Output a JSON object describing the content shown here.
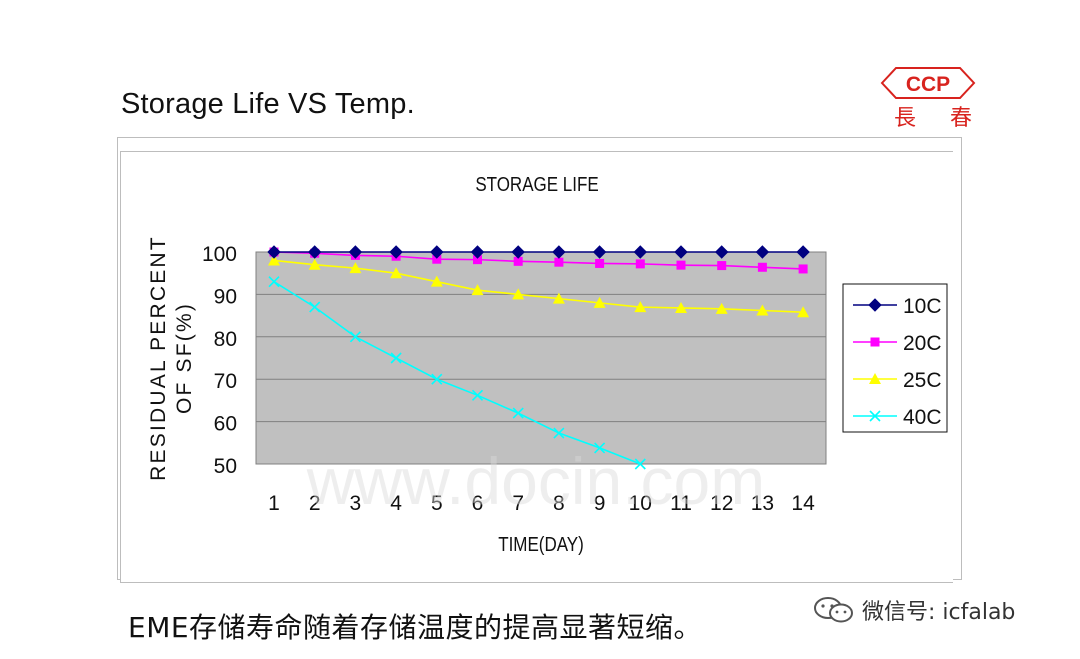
{
  "slide": {
    "title": "Storage Life VS Temp.",
    "caption": "EME存储寿命随着存储温度的提高显著短缩。"
  },
  "logo": {
    "brand": "CCP",
    "chinese_left": "長",
    "chinese_right": "春",
    "color": "#d8231e"
  },
  "watermark": {
    "text": "微信号: icfalab",
    "icon": "wechat-icon",
    "overlay_text": "www.docin.com"
  },
  "colors": {
    "plot_bg": "#c0c0c0",
    "gridline": "#808080",
    "series_10C": "#000080",
    "series_20C": "#ff00ff",
    "series_25C": "#ffff00",
    "series_40C": "#00ffff"
  },
  "chart_data": {
    "type": "line",
    "title": "STORAGE LIFE",
    "xlabel": "TIME(DAY)",
    "ylabel_line1": "RESIDUAL PERCENT",
    "ylabel_line2": "OF SF(%)",
    "x": [
      1,
      2,
      3,
      4,
      5,
      6,
      7,
      8,
      9,
      10,
      11,
      12,
      13,
      14
    ],
    "ylim": [
      50,
      100
    ],
    "yticks": [
      100,
      90,
      80,
      70,
      60,
      50
    ],
    "grid": true,
    "legend_position": "right",
    "series": [
      {
        "name": "10C",
        "marker": "diamond",
        "color": "#000080",
        "values": [
          100,
          100,
          100,
          100,
          100,
          100,
          100,
          100,
          100,
          100,
          100,
          100,
          100,
          100
        ]
      },
      {
        "name": "20C",
        "marker": "square",
        "color": "#ff00ff",
        "values": [
          100,
          99.7,
          99.2,
          99,
          98.3,
          98.2,
          97.8,
          97.6,
          97.3,
          97.2,
          96.9,
          96.8,
          96.4,
          96
        ]
      },
      {
        "name": "25C",
        "marker": "triangle",
        "color": "#ffff00",
        "values": [
          98,
          97,
          96.2,
          95,
          93,
          91,
          90,
          89,
          88,
          87,
          86.8,
          86.6,
          86.2,
          85.8
        ]
      },
      {
        "name": "40C",
        "marker": "x",
        "color": "#00ffff",
        "x": [
          1,
          2,
          3,
          4,
          5,
          6,
          7,
          8,
          9,
          10
        ],
        "values": [
          93,
          87,
          80,
          75,
          70,
          66.2,
          62,
          57.3,
          53.8,
          50
        ]
      }
    ]
  }
}
